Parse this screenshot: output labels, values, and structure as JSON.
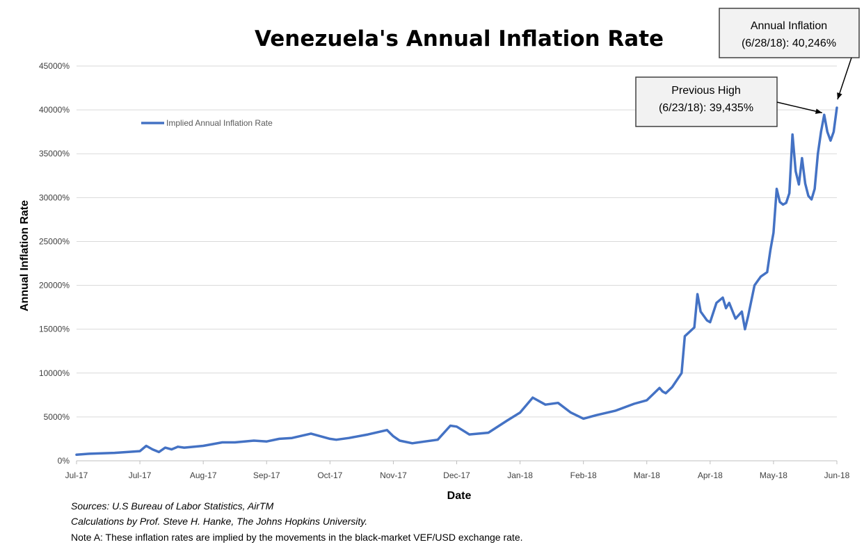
{
  "chart_data": {
    "type": "line",
    "title": "Venezuela's Annual Inflation Rate",
    "xlabel": "Date",
    "ylabel": "Annual Inflation Rate",
    "ylim": [
      0,
      45000
    ],
    "y_ticks": [
      0,
      5000,
      10000,
      15000,
      20000,
      25000,
      30000,
      35000,
      40000,
      45000
    ],
    "y_tick_labels": [
      "0%",
      "5000%",
      "10000%",
      "15000%",
      "20000%",
      "25000%",
      "30000%",
      "35000%",
      "40000%",
      "45000%"
    ],
    "x_tick_labels": [
      "Jul-17",
      "Jul-17",
      "Aug-17",
      "Sep-17",
      "Oct-17",
      "Nov-17",
      "Dec-17",
      "Jan-18",
      "Feb-18",
      "Mar-18",
      "Apr-18",
      "May-18",
      "Jun-18"
    ],
    "x_domain": [
      0,
      12
    ],
    "grid": true,
    "legend_position": "top-left",
    "series": [
      {
        "name": "Implied Annual Inflation Rate",
        "color": "#4472C4",
        "x": [
          0,
          0.2,
          0.4,
          0.6,
          0.8,
          1.0,
          1.1,
          1.2,
          1.3,
          1.4,
          1.5,
          1.6,
          1.7,
          2.0,
          2.3,
          2.5,
          2.8,
          3.0,
          3.2,
          3.4,
          3.7,
          4.0,
          4.1,
          4.3,
          4.6,
          4.9,
          5.0,
          5.1,
          5.3,
          5.5,
          5.7,
          5.9,
          6.0,
          6.2,
          6.5,
          6.8,
          7.0,
          7.2,
          7.4,
          7.6,
          7.8,
          8.0,
          8.2,
          8.5,
          8.8,
          9.0,
          9.1,
          9.2,
          9.25,
          9.3,
          9.4,
          9.55,
          9.6,
          9.75,
          9.8,
          9.85,
          9.95,
          10.0,
          10.1,
          10.2,
          10.25,
          10.3,
          10.4,
          10.5,
          10.55,
          10.6,
          10.7,
          10.75,
          10.8,
          10.9,
          10.95,
          11.0,
          11.05,
          11.1,
          11.15,
          11.2,
          11.25,
          11.3,
          11.35,
          11.4,
          11.45,
          11.5,
          11.55,
          11.6,
          11.65,
          11.7,
          11.75,
          11.8,
          11.85,
          11.9,
          11.95,
          12.0
        ],
        "y": [
          700,
          800,
          850,
          900,
          1000,
          1100,
          1700,
          1300,
          1000,
          1500,
          1300,
          1600,
          1500,
          1700,
          2100,
          2100,
          2300,
          2200,
          2500,
          2600,
          3100,
          2500,
          2400,
          2600,
          3000,
          3500,
          2800,
          2300,
          2000,
          2200,
          2400,
          4000,
          3900,
          3000,
          3200,
          4600,
          5500,
          7200,
          6400,
          6600,
          5500,
          4800,
          5200,
          5700,
          6500,
          6900,
          7600,
          8300,
          7900,
          7700,
          8400,
          10000,
          14200,
          15200,
          19000,
          17000,
          16000,
          15800,
          18000,
          18600,
          17400,
          18000,
          16200,
          17000,
          15000,
          16500,
          20000,
          20500,
          21000,
          21500,
          24000,
          26000,
          31000,
          29500,
          29200,
          29400,
          30500,
          37200,
          33000,
          31500,
          34500,
          31600,
          30200,
          29800,
          31000,
          35000,
          37500,
          39435,
          37500,
          36500,
          37500,
          40246
        ]
      }
    ],
    "annotations": [
      {
        "lines": [
          "Annual Inflation",
          "(6/28/18): 40,246%"
        ]
      },
      {
        "lines": [
          "Previous High",
          "(6/23/18): 39,435%"
        ]
      }
    ]
  },
  "notes": {
    "sources": "Sources: U.S Bureau of Labor Statistics, AirTM",
    "calculations": "Calculations by Prof. Steve H. Hanke, The Johns Hopkins University.",
    "note_a": "Note A: These inflation rates are implied by the movements in the black-market VEF/USD exchange rate."
  }
}
